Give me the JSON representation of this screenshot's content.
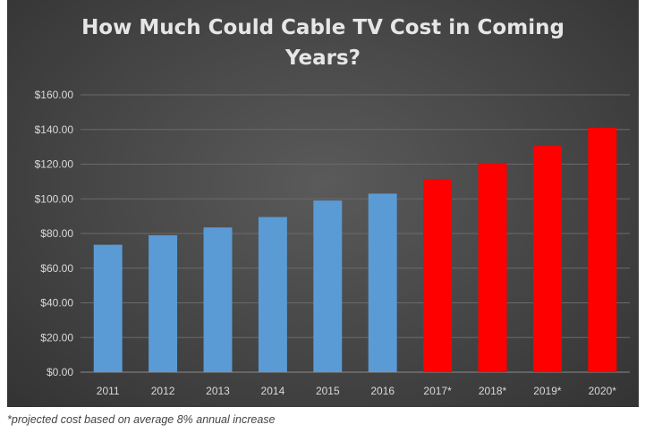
{
  "chart_data": {
    "type": "bar",
    "title_lines": [
      "How Much Could Cable TV Cost in Coming",
      "Years?"
    ],
    "categories": [
      "2011",
      "2012",
      "2013",
      "2014",
      "2015",
      "2016",
      "2017*",
      "2018*",
      "2019*",
      "2020*"
    ],
    "values": [
      73.5,
      79,
      83.5,
      89.5,
      99,
      103,
      111.5,
      120.5,
      130.5,
      141
    ],
    "projected": [
      false,
      false,
      false,
      false,
      false,
      false,
      true,
      true,
      true,
      true
    ],
    "y_ticks": [
      "$0.00",
      "$20.00",
      "$40.00",
      "$60.00",
      "$80.00",
      "$100.00",
      "$120.00",
      "$140.00",
      "$160.00"
    ],
    "ylim": [
      0,
      160
    ],
    "grid": true,
    "colors": {
      "actual": "#5b9bd5",
      "projected": "#ff0000",
      "grid": "#6a6a6a"
    }
  },
  "footnote": "*projected cost based on average 8% annual increase"
}
